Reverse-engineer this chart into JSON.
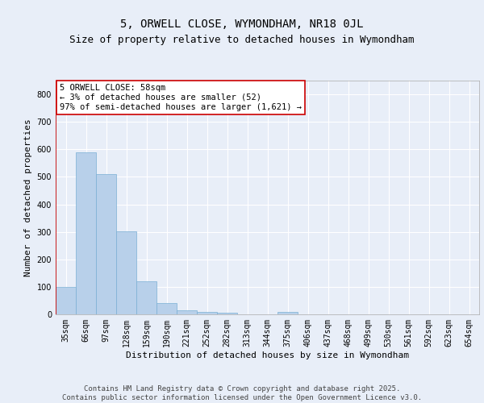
{
  "title1": "5, ORWELL CLOSE, WYMONDHAM, NR18 0JL",
  "title2": "Size of property relative to detached houses in Wymondham",
  "xlabel": "Distribution of detached houses by size in Wymondham",
  "ylabel": "Number of detached properties",
  "categories": [
    "35sqm",
    "66sqm",
    "97sqm",
    "128sqm",
    "159sqm",
    "190sqm",
    "221sqm",
    "252sqm",
    "282sqm",
    "313sqm",
    "344sqm",
    "375sqm",
    "406sqm",
    "437sqm",
    "468sqm",
    "499sqm",
    "530sqm",
    "561sqm",
    "592sqm",
    "623sqm",
    "654sqm"
  ],
  "values": [
    100,
    590,
    510,
    302,
    120,
    42,
    15,
    8,
    5,
    0,
    0,
    8,
    0,
    0,
    0,
    0,
    0,
    0,
    0,
    0,
    0
  ],
  "bar_color": "#b8d0ea",
  "bar_edge_color": "#7aafd4",
  "highlight_color": "#cc0000",
  "annotation_text": "5 ORWELL CLOSE: 58sqm\n← 3% of detached houses are smaller (52)\n97% of semi-detached houses are larger (1,621) →",
  "annotation_box_color": "#ffffff",
  "annotation_box_edge": "#cc0000",
  "ylim": [
    0,
    850
  ],
  "yticks": [
    0,
    100,
    200,
    300,
    400,
    500,
    600,
    700,
    800
  ],
  "background_color": "#e8eef8",
  "grid_color": "#ffffff",
  "footer_text": "Contains HM Land Registry data © Crown copyright and database right 2025.\nContains public sector information licensed under the Open Government Licence v3.0.",
  "title1_fontsize": 10,
  "title2_fontsize": 9,
  "xlabel_fontsize": 8,
  "ylabel_fontsize": 8,
  "tick_fontsize": 7,
  "annotation_fontsize": 7.5,
  "footer_fontsize": 6.5
}
